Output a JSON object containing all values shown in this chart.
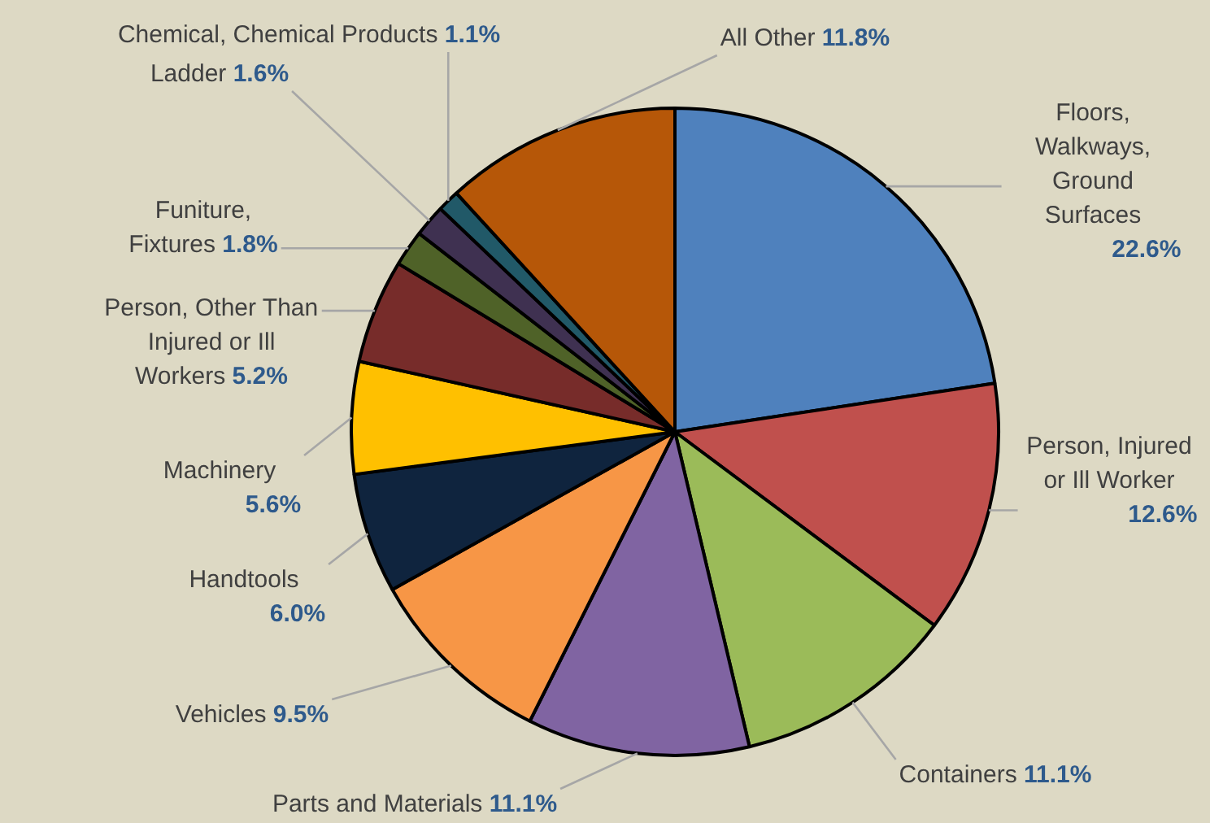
{
  "chart_data": {
    "type": "pie",
    "categories": [
      "Floors, Walkways, Ground Surfaces",
      "Person, Injured or Ill Worker",
      "Containers",
      "Parts and Materials",
      "Vehicles",
      "Handtools",
      "Machinery",
      "Person, Other Than Injured or Ill Workers",
      "Funiture, Fixtures",
      "Ladder",
      "Chemical, Chemical Products",
      "All Other"
    ],
    "values": [
      22.6,
      12.6,
      11.1,
      11.1,
      9.5,
      6.0,
      5.6,
      5.2,
      1.8,
      1.6,
      1.1,
      11.8
    ],
    "value_labels": [
      "22.6%",
      "12.6%",
      "11.1%",
      "11.1%",
      "9.5%",
      "6.0%",
      "5.6%",
      "5.2%",
      "1.8%",
      "1.6%",
      "1.1%",
      "11.8%"
    ],
    "colors": [
      "#4f81bd",
      "#c0504d",
      "#9bbb59",
      "#8064a2",
      "#f79646",
      "#0f243e",
      "#ffc000",
      "#772c2a",
      "#4f6228",
      "#3f3151",
      "#215968",
      "#b65708"
    ],
    "legend": false
  }
}
